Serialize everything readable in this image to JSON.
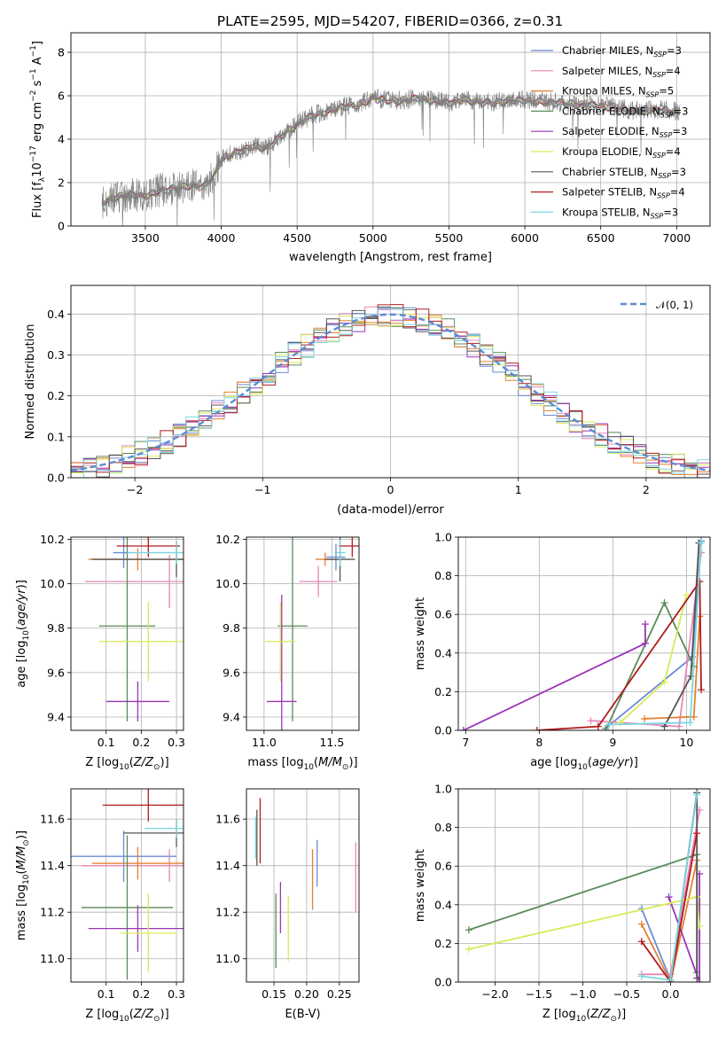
{
  "figure": {
    "title": "PLATE=2595, MJD=54207, FIBERID=0366, z=0.31"
  },
  "colors": {
    "grid": "#b0b0b0",
    "gaussian": "#5b8bd6"
  },
  "models": [
    {
      "name": "Chabrier MILES, N$_{SSP}$=3",
      "color": "#6a8bd4",
      "legend_main": "Chabrier MILES, N",
      "legend_sub": "SSP",
      "legend_tail": "=3"
    },
    {
      "name": "Salpeter MILES, N$_{SSP}$=4",
      "color": "#e986b6",
      "legend_main": "Salpeter MILES, N",
      "legend_sub": "SSP",
      "legend_tail": "=4"
    },
    {
      "name": "Kroupa MILES, N$_{SSP}$=5",
      "color": "#e58031",
      "legend_main": "Kroupa MILES, N",
      "legend_sub": "SSP",
      "legend_tail": "=5"
    },
    {
      "name": "Chabrier ELODIE, N$_{SSP}$=3",
      "color": "#5a8a5a",
      "legend_main": "Chabrier ELODIE, N",
      "legend_sub": "SSP",
      "legend_tail": "=3"
    },
    {
      "name": "Salpeter ELODIE, N$_{SSP}$=3",
      "color": "#9a35b5",
      "legend_main": "Salpeter ELODIE, N",
      "legend_sub": "SSP",
      "legend_tail": "=3"
    },
    {
      "name": "Kroupa ELODIE, N$_{SSP}$=4",
      "color": "#d9ea5a",
      "legend_main": "Kroupa ELODIE, N",
      "legend_sub": "SSP",
      "legend_tail": "=4"
    },
    {
      "name": "Chabrier STELIB, N$_{SSP}$=3",
      "color": "#555555",
      "legend_main": "Chabrier STELIB, N",
      "legend_sub": "SSP",
      "legend_tail": "=3"
    },
    {
      "name": "Salpeter STELIB, N$_{SSP}$=4",
      "color": "#b01c1c",
      "legend_main": "Salpeter STELIB, N",
      "legend_sub": "SSP",
      "legend_tail": "=4"
    },
    {
      "name": "Kroupa STELIB, N$_{SSP}$=3",
      "color": "#7ad6e0",
      "legend_main": "Kroupa STELIB, N",
      "legend_sub": "SSP",
      "legend_tail": "=3"
    }
  ],
  "chart_data": [
    {
      "id": "spectrum",
      "type": "line",
      "xlabel": "wavelength [Angstrom, rest frame]",
      "ylabel": "Flux [f$_\\lambda$10$^{-17}$ erg cm$^{-2}$ s$^{-1}$ A$^{-1}$]",
      "ylabel_parts": [
        "Flux [f",
        "λ",
        "10",
        "−17",
        " erg cm",
        "−2",
        " s",
        "−1",
        " A",
        "−1",
        "]"
      ],
      "xlim": [
        3010,
        7220
      ],
      "ylim": [
        0,
        8.9
      ],
      "xticks": [
        "3500",
        "4000",
        "4500",
        "5000",
        "5500",
        "6000",
        "6500",
        "7000"
      ],
      "xtick_values": [
        3500,
        4000,
        4500,
        5000,
        5500,
        6000,
        6500,
        7000
      ],
      "yticks": [
        "0",
        "2",
        "4",
        "6",
        "8"
      ],
      "ytick_values": [
        0,
        2,
        4,
        6,
        8
      ],
      "legend_position": "right",
      "data_range": [
        3215,
        7020
      ],
      "continuum": [
        [
          3215,
          1.1
        ],
        [
          3300,
          1.35
        ],
        [
          3400,
          1.45
        ],
        [
          3500,
          1.4
        ],
        [
          3600,
          1.65
        ],
        [
          3700,
          1.75
        ],
        [
          3800,
          1.9
        ],
        [
          3880,
          1.8
        ],
        [
          3950,
          2.3
        ],
        [
          4000,
          3.1
        ],
        [
          4100,
          3.4
        ],
        [
          4200,
          3.7
        ],
        [
          4300,
          3.6
        ],
        [
          4400,
          4.2
        ],
        [
          4500,
          4.7
        ],
        [
          4600,
          5.1
        ],
        [
          4700,
          5.3
        ],
        [
          4800,
          5.5
        ],
        [
          4900,
          5.6
        ],
        [
          5000,
          5.9
        ],
        [
          5100,
          5.8
        ],
        [
          5200,
          5.8
        ],
        [
          5300,
          5.9
        ],
        [
          5400,
          5.8
        ],
        [
          5500,
          5.7
        ],
        [
          5600,
          5.85
        ],
        [
          5700,
          5.7
        ],
        [
          5800,
          5.7
        ],
        [
          5900,
          5.8
        ],
        [
          6000,
          5.8
        ],
        [
          6100,
          5.75
        ],
        [
          6200,
          5.7
        ],
        [
          6300,
          5.65
        ],
        [
          6400,
          5.6
        ],
        [
          6500,
          5.55
        ],
        [
          6600,
          5.5
        ],
        [
          6700,
          5.3
        ],
        [
          6800,
          5.4
        ],
        [
          6900,
          5.35
        ],
        [
          7020,
          5.3
        ]
      ]
    },
    {
      "id": "residuals",
      "type": "histogram",
      "xlabel": "(data-model)/error",
      "ylabel": "Normed distribution",
      "xlim": [
        -2.5,
        2.5
      ],
      "ylim": [
        0,
        0.47
      ],
      "xticks": [
        "−2",
        "−1",
        "0",
        "1",
        "2"
      ],
      "xtick_values": [
        -2,
        -1,
        0,
        1,
        2
      ],
      "yticks": [
        "0.0",
        "0.1",
        "0.2",
        "0.3",
        "0.4"
      ],
      "ytick_values": [
        0,
        0.1,
        0.2,
        0.3,
        0.4
      ],
      "bin_width": 0.1,
      "reference_curve": "N(0,1)",
      "legend_label": "𝒩(0, 1)",
      "legend_position": "top-right"
    },
    {
      "id": "age_vs_Z",
      "type": "errorbar",
      "xlabel": "Z [log$_{10}$(Z/Z$_\\odot$)]",
      "ylabel": "age  [log$_{10}$(age/yr)]",
      "xlim": [
        0.0,
        0.32
      ],
      "ylim": [
        9.34,
        10.21
      ],
      "xticks": [
        "0.1",
        "0.2",
        "0.3"
      ],
      "xtick_values": [
        0.1,
        0.2,
        0.3
      ],
      "yticks": [
        "9.4",
        "9.6",
        "9.8",
        "10.0",
        "10.2"
      ],
      "ytick_values": [
        9.4,
        9.6,
        9.8,
        10.0,
        10.2
      ],
      "points": [
        {
          "model": 0,
          "x": 0.15,
          "xerr": 0.03,
          "y": 10.14,
          "yerr": 0.07
        },
        {
          "model": 1,
          "x": 0.28,
          "xerr": 0.24,
          "y": 10.01,
          "yerr": 0.12
        },
        {
          "model": 2,
          "x": 0.19,
          "xerr": 0.14,
          "y": 10.11,
          "yerr": 0.05
        },
        {
          "model": 3,
          "x": 0.16,
          "xerr": 0.08,
          "y": 9.81,
          "yerr": 0.43
        },
        {
          "model": 4,
          "x": 0.19,
          "xerr": 0.09,
          "y": 9.47,
          "yerr": 0.09
        },
        {
          "model": 5,
          "x": 0.22,
          "xerr": 0.14,
          "y": 9.74,
          "yerr": 0.18
        },
        {
          "model": 6,
          "x": 0.3,
          "xerr": 0.24,
          "y": 10.11,
          "yerr": 0.08
        },
        {
          "model": 7,
          "x": 0.22,
          "xerr": 0.09,
          "y": 10.17,
          "yerr": 0.05
        },
        {
          "model": 8,
          "x": 0.3,
          "xerr": 0.14,
          "y": 10.14,
          "yerr": 0.05
        }
      ]
    },
    {
      "id": "age_vs_mass",
      "type": "errorbar",
      "xlabel": "mass [log$_{10}$(M/M$_\\odot$)]",
      "ylabel": "",
      "xlim": [
        10.87,
        11.7
      ],
      "ylim": [
        9.34,
        10.21
      ],
      "xticks": [
        "11.0",
        "11.5"
      ],
      "xtick_values": [
        11.0,
        11.5
      ],
      "yticks": [
        "9.4",
        "9.6",
        "9.8",
        "10.0",
        "10.2"
      ],
      "ytick_values": [
        9.4,
        9.6,
        9.8,
        10.0,
        10.2
      ],
      "points": [
        {
          "model": 0,
          "x": 11.53,
          "xerr": 0.07,
          "y": 10.12,
          "yerr": 0.06
        },
        {
          "model": 1,
          "x": 11.4,
          "xerr": 0.14,
          "y": 10.01,
          "yerr": 0.07
        },
        {
          "model": 2,
          "x": 11.45,
          "xerr": 0.07,
          "y": 10.11,
          "yerr": 0.03
        },
        {
          "model": 3,
          "x": 11.21,
          "xerr": 0.11,
          "y": 9.81,
          "yerr": 0.43
        },
        {
          "model": 4,
          "x": 11.13,
          "xerr": 0.11,
          "y": 9.47,
          "yerr": 0.48
        },
        {
          "model": 5,
          "x": 11.12,
          "xerr": 0.11,
          "y": 9.74,
          "yerr": 0.18
        },
        {
          "model": 6,
          "x": 11.56,
          "xerr": 0.11,
          "y": 10.11,
          "yerr": 0.1
        },
        {
          "model": 7,
          "x": 11.65,
          "xerr": 0.1,
          "y": 10.17,
          "yerr": 0.05
        },
        {
          "model": 8,
          "x": 11.56,
          "xerr": 0.04,
          "y": 10.14,
          "yerr": 0.06
        }
      ]
    },
    {
      "id": "mass_weight_vs_age",
      "type": "line",
      "xlabel": "age  [log$_{10}$(age/yr)]",
      "ylabel": "mass weight",
      "xlim": [
        6.9,
        10.32
      ],
      "ylim": [
        0,
        1.0
      ],
      "xticks": [
        "7",
        "8",
        "9",
        "10"
      ],
      "xtick_values": [
        7,
        8,
        9,
        10
      ],
      "yticks": [
        "0.0",
        "0.2",
        "0.4",
        "0.6",
        "0.8",
        "1.0"
      ],
      "ytick_values": [
        0,
        0.2,
        0.4,
        0.6,
        0.8,
        1.0
      ],
      "series": [
        {
          "model": 0,
          "x": [
            8.9,
            10.08,
            10.2
          ],
          "y": [
            0.01,
            0.38,
            0.98
          ]
        },
        {
          "model": 1,
          "x": [
            8.7,
            9.9,
            10.2
          ],
          "y": [
            0.05,
            0.02,
            0.92
          ]
        },
        {
          "model": 2,
          "x": [
            9.43,
            10.1,
            10.18
          ],
          "y": [
            0.06,
            0.07,
            0.59
          ]
        },
        {
          "model": 3,
          "x": [
            8.9,
            9.7,
            10.1
          ],
          "y": [
            0.0,
            0.66,
            0.33
          ]
        },
        {
          "model": 4,
          "x": [
            6.97,
            9.44,
            9.44
          ],
          "y": [
            0.0,
            0.45,
            0.55
          ]
        },
        {
          "model": 5,
          "x": [
            9.1,
            9.7,
            10.0
          ],
          "y": [
            0.04,
            0.25,
            0.7
          ]
        },
        {
          "model": 6,
          "x": [
            9.7,
            10.06,
            10.17
          ],
          "y": [
            0.02,
            0.28,
            0.97
          ]
        },
        {
          "model": 7,
          "x": [
            7.97,
            8.8,
            10.18,
            10.2
          ],
          "y": [
            0.0,
            0.02,
            0.77,
            0.21
          ]
        },
        {
          "model": 8,
          "x": [
            8.95,
            10.05,
            10.2
          ],
          "y": [
            0.03,
            0.04,
            0.97
          ]
        }
      ]
    },
    {
      "id": "mass_vs_Z",
      "type": "errorbar",
      "xlabel": "Z [log$_{10}$(Z/Z$_\\odot$)]",
      "ylabel": "mass [log$_{10}$(M/M$_\\odot$)]",
      "xlim": [
        0.0,
        0.32
      ],
      "ylim": [
        10.9,
        11.73
      ],
      "xticks": [
        "0.1",
        "0.2",
        "0.3"
      ],
      "xtick_values": [
        0.1,
        0.2,
        0.3
      ],
      "yticks": [
        "11.0",
        "11.2",
        "11.4",
        "11.6"
      ],
      "ytick_values": [
        11.0,
        11.2,
        11.4,
        11.6
      ],
      "points": [
        {
          "model": 0,
          "x": 0.15,
          "xerr": 0.15,
          "y": 11.44,
          "yerr": 0.11
        },
        {
          "model": 1,
          "x": 0.28,
          "xerr": 0.25,
          "y": 11.4,
          "yerr": 0.07
        },
        {
          "model": 2,
          "x": 0.19,
          "xerr": 0.13,
          "y": 11.41,
          "yerr": 0.07
        },
        {
          "model": 3,
          "x": 0.16,
          "xerr": 0.13,
          "y": 11.22,
          "yerr": 0.31
        },
        {
          "model": 4,
          "x": 0.19,
          "xerr": 0.14,
          "y": 11.13,
          "yerr": 0.1
        },
        {
          "model": 5,
          "x": 0.22,
          "xerr": 0.08,
          "y": 11.11,
          "yerr": 0.17
        },
        {
          "model": 6,
          "x": 0.3,
          "xerr": 0.15,
          "y": 11.54,
          "yerr": 0.06
        },
        {
          "model": 7,
          "x": 0.22,
          "xerr": 0.13,
          "y": 11.66,
          "yerr": 0.07
        },
        {
          "model": 8,
          "x": 0.3,
          "xerr": 0.09,
          "y": 11.56,
          "yerr": 0.04
        }
      ]
    },
    {
      "id": "mass_vs_EBV",
      "type": "errorbar",
      "xlabel": "E(B-V)",
      "ylabel": "",
      "xlim": [
        0.108,
        0.28
      ],
      "ylim": [
        10.9,
        11.73
      ],
      "xticks": [
        "0.15",
        "0.20",
        "0.25"
      ],
      "xtick_values": [
        0.15,
        0.2,
        0.25
      ],
      "yticks": [
        "11.0",
        "11.2",
        "11.4",
        "11.6"
      ],
      "ytick_values": [
        11.0,
        11.2,
        11.4,
        11.6
      ],
      "points": [
        {
          "model": 0,
          "x": 0.216,
          "xerr": 0,
          "y": 11.41,
          "yerr": 0.1
        },
        {
          "model": 1,
          "x": 0.275,
          "xerr": 0,
          "y": 11.35,
          "yerr": 0.15
        },
        {
          "model": 2,
          "x": 0.209,
          "xerr": 0,
          "y": 11.34,
          "yerr": 0.13
        },
        {
          "model": 3,
          "x": 0.153,
          "xerr": 0,
          "y": 11.12,
          "yerr": 0.16
        },
        {
          "model": 4,
          "x": 0.16,
          "xerr": 0,
          "y": 11.22,
          "yerr": 0.11
        },
        {
          "model": 5,
          "x": 0.172,
          "xerr": 0,
          "y": 11.13,
          "yerr": 0.14
        },
        {
          "model": 6,
          "x": 0.124,
          "xerr": 0,
          "y": 11.52,
          "yerr": 0.12
        },
        {
          "model": 7,
          "x": 0.129,
          "xerr": 0,
          "y": 11.55,
          "yerr": 0.14
        },
        {
          "model": 8,
          "x": 0.122,
          "xerr": 0,
          "y": 11.52,
          "yerr": 0.09
        }
      ]
    },
    {
      "id": "mass_weight_vs_Z",
      "type": "line",
      "xlabel": "Z [log$_{10}$(Z/Z$_\\odot$)]",
      "ylabel": "mass weight",
      "xlim": [
        -2.42,
        0.45
      ],
      "ylim": [
        0,
        1.0
      ],
      "xticks": [
        "−2.0",
        "−1.5",
        "−1.0",
        "−0.5",
        "0.0"
      ],
      "xtick_values": [
        -2.0,
        -1.5,
        -1.0,
        -0.5,
        0.0
      ],
      "yticks": [
        "0.0",
        "0.2",
        "0.4",
        "0.6",
        "0.8",
        "1.0"
      ],
      "ytick_values": [
        0,
        0.2,
        0.4,
        0.6,
        0.8,
        1.0
      ],
      "series": [
        {
          "model": 0,
          "x": [
            -0.33,
            0.0,
            0.3
          ],
          "y": [
            0.38,
            0.01,
            0.98
          ]
        },
        {
          "model": 1,
          "x": [
            -0.33,
            0.0,
            0.33
          ],
          "y": [
            0.04,
            0.04,
            0.89
          ]
        },
        {
          "model": 2,
          "x": [
            -0.33,
            0.0,
            0.3
          ],
          "y": [
            0.3,
            0.0,
            0.63
          ]
        },
        {
          "model": 3,
          "x": [
            -2.3,
            0.3,
            0.3
          ],
          "y": [
            0.27,
            0.66,
            0.05
          ]
        },
        {
          "model": 4,
          "x": [
            -0.02,
            0.33,
            0.33
          ],
          "y": [
            0.44,
            0.0,
            0.56
          ]
        },
        {
          "model": 5,
          "x": [
            -2.3,
            0.3,
            0.33
          ],
          "y": [
            0.17,
            0.44,
            0.29
          ]
        },
        {
          "model": 6,
          "x": [
            0.0,
            0.3,
            0.3
          ],
          "y": [
            0.0,
            0.98,
            0.02
          ]
        },
        {
          "model": 7,
          "x": [
            -0.33,
            0.0,
            0.3
          ],
          "y": [
            0.21,
            0.0,
            0.77
          ]
        },
        {
          "model": 8,
          "x": [
            -0.33,
            0.0,
            0.3
          ],
          "y": [
            0.03,
            0.01,
            0.97
          ]
        }
      ]
    }
  ]
}
